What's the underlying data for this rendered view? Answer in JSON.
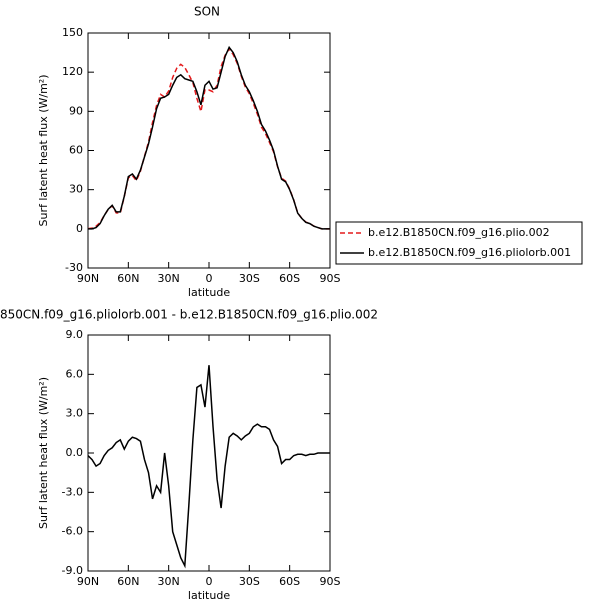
{
  "chart_data": [
    {
      "type": "line",
      "title": "SON",
      "xlabel": "latitude",
      "ylabel": "Surf latent heat flux (W/m²)",
      "x": [
        90,
        87,
        84,
        81,
        78,
        75,
        72,
        69,
        66,
        63,
        60,
        57,
        54,
        51,
        48,
        45,
        42,
        39,
        36,
        33,
        30,
        27,
        24,
        21,
        18,
        15,
        12,
        9,
        6,
        3,
        0,
        -3,
        -6,
        -9,
        -12,
        -15,
        -18,
        -21,
        -24,
        -27,
        -30,
        -33,
        -36,
        -39,
        -42,
        -45,
        -48,
        -51,
        -54,
        -57,
        -60,
        -63,
        -66,
        -69,
        -72,
        -75,
        -78,
        -81,
        -84,
        -87,
        -90
      ],
      "xlim": [
        90,
        -90
      ],
      "xticks": [
        {
          "value": 90,
          "label": "90N"
        },
        {
          "value": 60,
          "label": "60N"
        },
        {
          "value": 30,
          "label": "30N"
        },
        0,
        {
          "value": -30,
          "label": "30S"
        },
        {
          "value": -60,
          "label": "60S"
        },
        {
          "value": -90,
          "label": "90S"
        }
      ],
      "ylim": [
        -30,
        150
      ],
      "yticks": [
        -30,
        0,
        30,
        60,
        90,
        120,
        150
      ],
      "legend": "right",
      "series": [
        {
          "name": "b.e12.B1850CN.f09_g16.plio.002",
          "color": "#e41a1c",
          "dash": true,
          "values": [
            0.2,
            0.5,
            2,
            4.8,
            10.2,
            14.8,
            17.6,
            12.2,
            12,
            24.7,
            39.1,
            40.8,
            36.9,
            44.1,
            55.5,
            66.5,
            81.5,
            94.5,
            103,
            101,
            105.5,
            116,
            123,
            126,
            123.6,
            118,
            112,
            100,
            89.8,
            106.5,
            106.3,
            105,
            110,
            124.2,
            133,
            137.8,
            133.5,
            126.7,
            117,
            108.7,
            103.5,
            96,
            87.8,
            78,
            73,
            66.2,
            59,
            47.5,
            38.8,
            36.5,
            30.5,
            22.2,
            12.1,
            8.1,
            5.2,
            4.1,
            2.1,
            1,
            0,
            0,
            0
          ]
        },
        {
          "name": "b.e12.B1850CN.f09_g16.pliolorb.001",
          "color": "#000000",
          "dash": false,
          "values": [
            0,
            0,
            1,
            4,
            10,
            15,
            18,
            13,
            13,
            25,
            40,
            42,
            38,
            45,
            55,
            65,
            78,
            92,
            100,
            101,
            103,
            110,
            116,
            118,
            115,
            114,
            113,
            105,
            95,
            110,
            113,
            107,
            108,
            120,
            132,
            139,
            135,
            128,
            118,
            110,
            105,
            98,
            90,
            80,
            75,
            68,
            60,
            48,
            38,
            36,
            30,
            22,
            12,
            8,
            5,
            4,
            2,
            1,
            0,
            0,
            0
          ]
        }
      ]
    },
    {
      "type": "line",
      "title": "850CN.f09_g16.pliolorb.001 - b.e12.B1850CN.f09_g16.plio.002",
      "xlabel": "latitude",
      "ylabel": "Surf latent heat flux (W/m²)",
      "x": [
        90,
        87,
        84,
        81,
        78,
        75,
        72,
        69,
        66,
        63,
        60,
        57,
        54,
        51,
        48,
        45,
        42,
        39,
        36,
        33,
        30,
        27,
        24,
        21,
        18,
        15,
        12,
        9,
        6,
        3,
        0,
        -3,
        -6,
        -9,
        -12,
        -15,
        -18,
        -21,
        -24,
        -27,
        -30,
        -33,
        -36,
        -39,
        -42,
        -45,
        -48,
        -51,
        -54,
        -57,
        -60,
        -63,
        -66,
        -69,
        -72,
        -75,
        -78,
        -81,
        -84,
        -87,
        -90
      ],
      "xlim": [
        90,
        -90
      ],
      "xticks": [
        {
          "value": 90,
          "label": "90N"
        },
        {
          "value": 60,
          "label": "60N"
        },
        {
          "value": 30,
          "label": "30N"
        },
        0,
        {
          "value": -30,
          "label": "30S"
        },
        {
          "value": -60,
          "label": "60S"
        },
        {
          "value": -90,
          "label": "90S"
        }
      ],
      "ylim": [
        -9,
        9
      ],
      "yticks": [
        {
          "value": -9,
          "label": "-9.0"
        },
        {
          "value": -6,
          "label": "-6.0"
        },
        {
          "value": -3,
          "label": "-3.0"
        },
        {
          "value": 0,
          "label": "0.0"
        },
        {
          "value": 3,
          "label": "3.0"
        },
        {
          "value": 6,
          "label": "6.0"
        },
        {
          "value": 9,
          "label": "9.0"
        }
      ],
      "series": [
        {
          "color": "#000000",
          "values": [
            -0.2,
            -0.5,
            -1.0,
            -0.8,
            -0.2,
            0.2,
            0.4,
            0.8,
            1.0,
            0.3,
            0.9,
            1.2,
            1.1,
            0.9,
            -0.5,
            -1.5,
            -3.5,
            -2.5,
            -3.0,
            0.0,
            -2.5,
            -6.0,
            -7.0,
            -8.0,
            -8.6,
            -4.0,
            1.0,
            5.0,
            5.2,
            3.5,
            6.7,
            2.0,
            -2.0,
            -4.2,
            -1.0,
            1.2,
            1.5,
            1.3,
            1.0,
            1.3,
            1.5,
            2.0,
            2.2,
            2.0,
            2.0,
            1.8,
            1.0,
            0.5,
            -0.8,
            -0.5,
            -0.5,
            -0.2,
            -0.1,
            -0.1,
            -0.2,
            -0.1,
            -0.1,
            0,
            0,
            0,
            0
          ]
        }
      ]
    }
  ]
}
